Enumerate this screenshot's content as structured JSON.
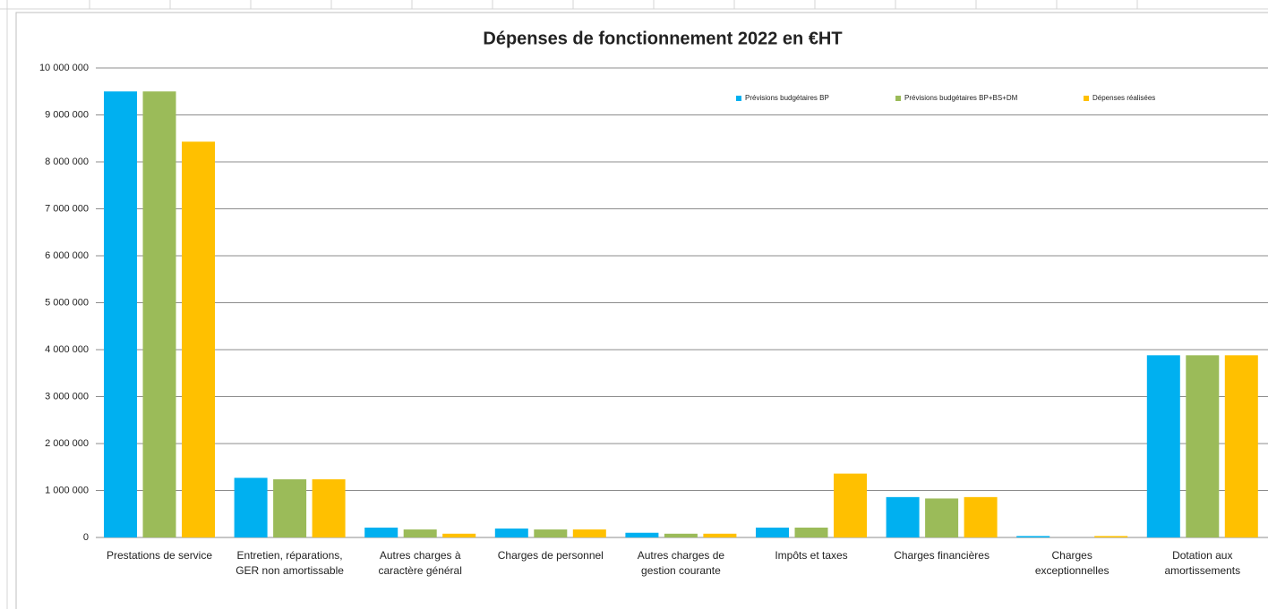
{
  "chart_data": {
    "type": "bar",
    "title": "Dépenses de fonctionnement 2022 en €HT",
    "categories": [
      "Prestations de service",
      "Entretien, réparations, GER non amortissable",
      "Autres charges à caractère général",
      "Charges de personnel",
      "Autres charges de gestion courante",
      "Impôts et taxes",
      "Charges financières",
      "Charges exceptionnelles",
      "Dotation aux amortissements"
    ],
    "series": [
      {
        "name": "Prévisions budgétaires BP",
        "color": "#00b0f0",
        "values": [
          9500000,
          1270000,
          210000,
          190000,
          100000,
          210000,
          860000,
          30000,
          3880000
        ]
      },
      {
        "name": "Prévisions budgétaires BP+BS+DM",
        "color": "#9bbb59",
        "values": [
          9500000,
          1240000,
          170000,
          170000,
          80000,
          210000,
          830000,
          0,
          3880000
        ]
      },
      {
        "name": "Dépenses réalisées",
        "color": "#ffc000",
        "values": [
          8430000,
          1240000,
          80000,
          170000,
          80000,
          1360000,
          860000,
          30000,
          3880000
        ]
      }
    ],
    "ylim": [
      0,
      10000000
    ],
    "yticks": [
      0,
      {
        "value": 1000000,
        "label": "1 000 000"
      },
      {
        "value": 2000000,
        "label": "2 000 000"
      },
      {
        "value": 3000000,
        "label": "3 000 000"
      },
      {
        "value": 4000000,
        "label": "4 000 000"
      },
      {
        "value": 5000000,
        "label": "5 000 000"
      },
      {
        "value": 6000000,
        "label": "6 000 000"
      },
      {
        "value": 7000000,
        "label": "7 000 000"
      },
      {
        "value": 8000000,
        "label": "8 000 000"
      },
      {
        "value": 9000000,
        "label": "9 000 000"
      },
      {
        "value": 10000000,
        "label": "10 000 000"
      }
    ],
    "grid": true,
    "legend": "top-right"
  }
}
